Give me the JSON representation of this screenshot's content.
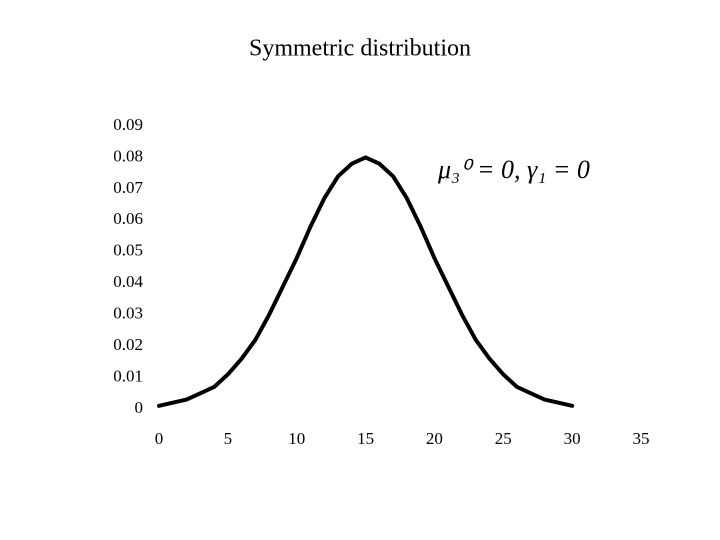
{
  "chart_data": {
    "type": "line",
    "title": "Symmetric distribution",
    "annotation": "μ₃⁰ = 0, γ₁ = 0",
    "x": [
      0,
      1,
      2,
      3,
      4,
      5,
      6,
      7,
      8,
      9,
      10,
      11,
      12,
      13,
      14,
      15,
      16,
      17,
      18,
      19,
      20,
      21,
      22,
      23,
      24,
      25,
      26,
      27,
      28,
      29,
      30
    ],
    "series": [
      {
        "color": "#000000",
        "values": [
          0.001,
          0.002,
          0.003,
          0.005,
          0.007,
          0.011,
          0.016,
          0.022,
          0.03,
          0.039,
          0.048,
          0.058,
          0.067,
          0.074,
          0.078,
          0.08,
          0.078,
          0.074,
          0.067,
          0.058,
          0.048,
          0.039,
          0.03,
          0.022,
          0.016,
          0.011,
          0.007,
          0.005,
          0.003,
          0.002,
          0.001
        ]
      }
    ],
    "xlim": [
      0,
      35
    ],
    "xticks": [
      0,
      5,
      10,
      15,
      20,
      25,
      30,
      35
    ],
    "ylim": [
      0,
      0.09
    ],
    "yticks": [
      0,
      0.01,
      0.02,
      0.03,
      0.04,
      0.05,
      0.06,
      0.07,
      0.08,
      0.09
    ]
  }
}
